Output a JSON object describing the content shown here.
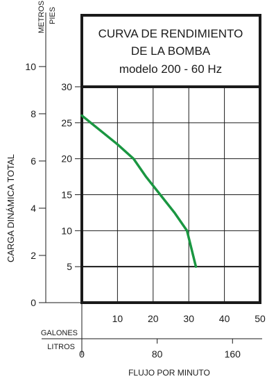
{
  "chart_data": {
    "type": "line",
    "title_lines": [
      "CURVA DE RENDIMIENTO",
      "DE LA BOMBA",
      "modelo 200 - 60 Hz"
    ],
    "xlabel": "FLUJO POR MINUTO",
    "ylabel": "CARGA DINÁMICA TOTAL",
    "x_primary_unit": "GALONES",
    "x_secondary_unit": "LITROS",
    "y_primary_unit": "PIES",
    "y_secondary_unit": "METROS",
    "x_primary_ticks": [
      10,
      20,
      30,
      40,
      50
    ],
    "x_secondary_ticks": [
      0,
      80,
      160
    ],
    "y_primary_ticks": [
      5,
      10,
      15,
      20,
      25,
      30
    ],
    "y_secondary_ticks": [
      0,
      2,
      4,
      6,
      8,
      10
    ],
    "xlim": [
      0,
      50
    ],
    "ylim": [
      0,
      30
    ],
    "grid": true,
    "line_color": "#1a9641",
    "series": [
      {
        "x": [
          0,
          5,
          10,
          14.5,
          18,
          22,
          26,
          29.5,
          32
        ],
        "y": [
          26,
          24,
          22,
          20,
          17.5,
          15,
          12.5,
          10,
          5
        ]
      }
    ]
  }
}
